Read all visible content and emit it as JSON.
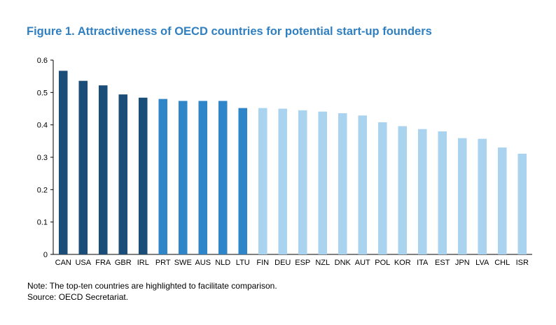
{
  "figure": {
    "title": "Figure 1. Attractiveness of OECD countries for potential start-up founders",
    "note": "Note: The top-ten countries are highlighted to facilitate comparison.",
    "source": "Source: OECD Secretariat."
  },
  "colors": {
    "top_dark": "#1a4e79",
    "top_mid": "#2e86c8",
    "rest": "#a9d3ee",
    "title": "#2f7fc1"
  },
  "chart_data": {
    "type": "bar",
    "title": "Figure 1. Attractiveness of OECD countries for potential start-up founders",
    "xlabel": "",
    "ylabel": "",
    "ylim": [
      0,
      0.6
    ],
    "yticks": [
      "0",
      "0.1",
      "0.2",
      "0.3",
      "0.4",
      "0.5",
      "0.6"
    ],
    "grid": false,
    "categories": [
      "CAN",
      "USA",
      "FRA",
      "GBR",
      "IRL",
      "PRT",
      "SWE",
      "AUS",
      "NLD",
      "LTU",
      "FIN",
      "DEU",
      "ESP",
      "NZL",
      "DNK",
      "AUT",
      "POL",
      "KOR",
      "ITA",
      "EST",
      "JPN",
      "LVA",
      "CHL",
      "ISR"
    ],
    "values": [
      0.567,
      0.536,
      0.522,
      0.494,
      0.484,
      0.48,
      0.474,
      0.474,
      0.474,
      0.452,
      0.452,
      0.45,
      0.445,
      0.441,
      0.436,
      0.429,
      0.408,
      0.396,
      0.387,
      0.38,
      0.359,
      0.357,
      0.33,
      0.311
    ],
    "groups": [
      "top_dark",
      "top_dark",
      "top_dark",
      "top_dark",
      "top_dark",
      "top_mid",
      "top_mid",
      "top_mid",
      "top_mid",
      "top_mid",
      "rest",
      "rest",
      "rest",
      "rest",
      "rest",
      "rest",
      "rest",
      "rest",
      "rest",
      "rest",
      "rest",
      "rest",
      "rest",
      "rest"
    ]
  }
}
